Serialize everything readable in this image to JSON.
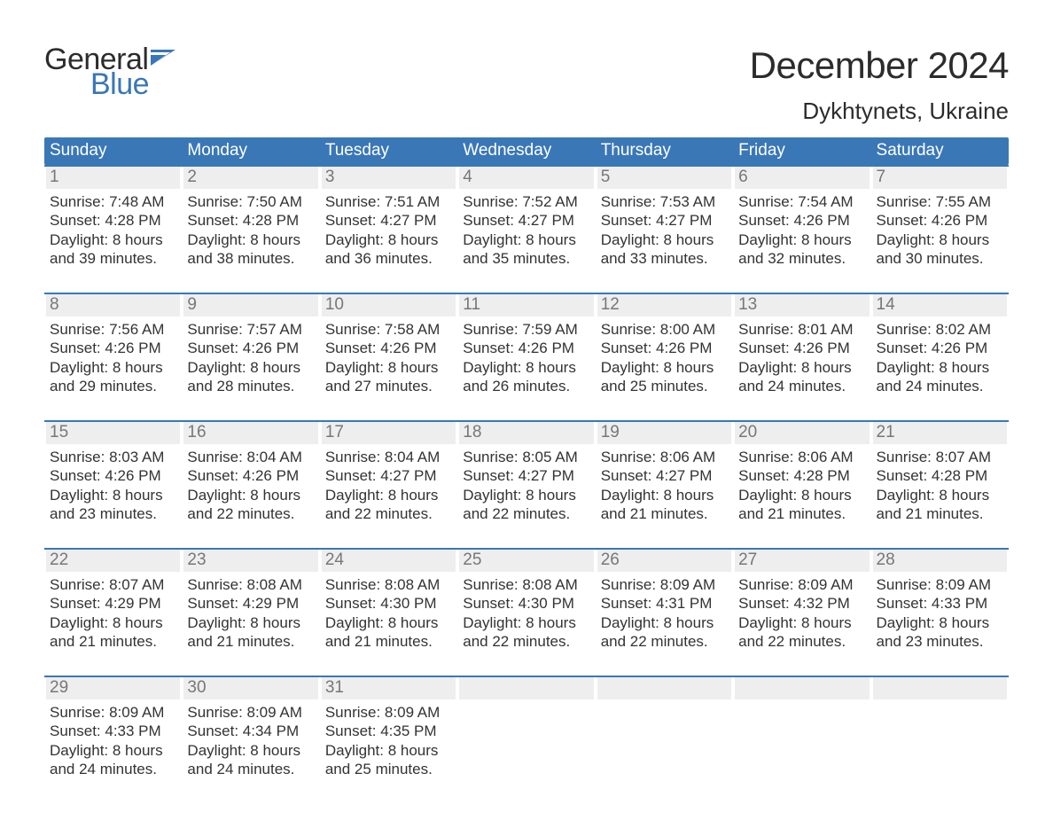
{
  "brand": {
    "word1": "General",
    "word2": "Blue",
    "flag_color": "#3a77b7"
  },
  "title": "December 2024",
  "location": "Dykhtynets, Ukraine",
  "colors": {
    "header_bg": "#3a77b7",
    "header_text": "#ffffff",
    "daynum_bg": "#eeeeee",
    "daynum_text": "#777777",
    "week_border": "#3a77b7",
    "body_text": "#333333",
    "page_bg": "#ffffff"
  },
  "weekdays": [
    "Sunday",
    "Monday",
    "Tuesday",
    "Wednesday",
    "Thursday",
    "Friday",
    "Saturday"
  ],
  "weeks": [
    [
      {
        "n": "1",
        "sunrise": "7:48 AM",
        "sunset": "4:28 PM",
        "dl1": "8 hours",
        "dl2": "and 39 minutes."
      },
      {
        "n": "2",
        "sunrise": "7:50 AM",
        "sunset": "4:28 PM",
        "dl1": "8 hours",
        "dl2": "and 38 minutes."
      },
      {
        "n": "3",
        "sunrise": "7:51 AM",
        "sunset": "4:27 PM",
        "dl1": "8 hours",
        "dl2": "and 36 minutes."
      },
      {
        "n": "4",
        "sunrise": "7:52 AM",
        "sunset": "4:27 PM",
        "dl1": "8 hours",
        "dl2": "and 35 minutes."
      },
      {
        "n": "5",
        "sunrise": "7:53 AM",
        "sunset": "4:27 PM",
        "dl1": "8 hours",
        "dl2": "and 33 minutes."
      },
      {
        "n": "6",
        "sunrise": "7:54 AM",
        "sunset": "4:26 PM",
        "dl1": "8 hours",
        "dl2": "and 32 minutes."
      },
      {
        "n": "7",
        "sunrise": "7:55 AM",
        "sunset": "4:26 PM",
        "dl1": "8 hours",
        "dl2": "and 30 minutes."
      }
    ],
    [
      {
        "n": "8",
        "sunrise": "7:56 AM",
        "sunset": "4:26 PM",
        "dl1": "8 hours",
        "dl2": "and 29 minutes."
      },
      {
        "n": "9",
        "sunrise": "7:57 AM",
        "sunset": "4:26 PM",
        "dl1": "8 hours",
        "dl2": "and 28 minutes."
      },
      {
        "n": "10",
        "sunrise": "7:58 AM",
        "sunset": "4:26 PM",
        "dl1": "8 hours",
        "dl2": "and 27 minutes."
      },
      {
        "n": "11",
        "sunrise": "7:59 AM",
        "sunset": "4:26 PM",
        "dl1": "8 hours",
        "dl2": "and 26 minutes."
      },
      {
        "n": "12",
        "sunrise": "8:00 AM",
        "sunset": "4:26 PM",
        "dl1": "8 hours",
        "dl2": "and 25 minutes."
      },
      {
        "n": "13",
        "sunrise": "8:01 AM",
        "sunset": "4:26 PM",
        "dl1": "8 hours",
        "dl2": "and 24 minutes."
      },
      {
        "n": "14",
        "sunrise": "8:02 AM",
        "sunset": "4:26 PM",
        "dl1": "8 hours",
        "dl2": "and 24 minutes."
      }
    ],
    [
      {
        "n": "15",
        "sunrise": "8:03 AM",
        "sunset": "4:26 PM",
        "dl1": "8 hours",
        "dl2": "and 23 minutes."
      },
      {
        "n": "16",
        "sunrise": "8:04 AM",
        "sunset": "4:26 PM",
        "dl1": "8 hours",
        "dl2": "and 22 minutes."
      },
      {
        "n": "17",
        "sunrise": "8:04 AM",
        "sunset": "4:27 PM",
        "dl1": "8 hours",
        "dl2": "and 22 minutes."
      },
      {
        "n": "18",
        "sunrise": "8:05 AM",
        "sunset": "4:27 PM",
        "dl1": "8 hours",
        "dl2": "and 22 minutes."
      },
      {
        "n": "19",
        "sunrise": "8:06 AM",
        "sunset": "4:27 PM",
        "dl1": "8 hours",
        "dl2": "and 21 minutes."
      },
      {
        "n": "20",
        "sunrise": "8:06 AM",
        "sunset": "4:28 PM",
        "dl1": "8 hours",
        "dl2": "and 21 minutes."
      },
      {
        "n": "21",
        "sunrise": "8:07 AM",
        "sunset": "4:28 PM",
        "dl1": "8 hours",
        "dl2": "and 21 minutes."
      }
    ],
    [
      {
        "n": "22",
        "sunrise": "8:07 AM",
        "sunset": "4:29 PM",
        "dl1": "8 hours",
        "dl2": "and 21 minutes."
      },
      {
        "n": "23",
        "sunrise": "8:08 AM",
        "sunset": "4:29 PM",
        "dl1": "8 hours",
        "dl2": "and 21 minutes."
      },
      {
        "n": "24",
        "sunrise": "8:08 AM",
        "sunset": "4:30 PM",
        "dl1": "8 hours",
        "dl2": "and 21 minutes."
      },
      {
        "n": "25",
        "sunrise": "8:08 AM",
        "sunset": "4:30 PM",
        "dl1": "8 hours",
        "dl2": "and 22 minutes."
      },
      {
        "n": "26",
        "sunrise": "8:09 AM",
        "sunset": "4:31 PM",
        "dl1": "8 hours",
        "dl2": "and 22 minutes."
      },
      {
        "n": "27",
        "sunrise": "8:09 AM",
        "sunset": "4:32 PM",
        "dl1": "8 hours",
        "dl2": "and 22 minutes."
      },
      {
        "n": "28",
        "sunrise": "8:09 AM",
        "sunset": "4:33 PM",
        "dl1": "8 hours",
        "dl2": "and 23 minutes."
      }
    ],
    [
      {
        "n": "29",
        "sunrise": "8:09 AM",
        "sunset": "4:33 PM",
        "dl1": "8 hours",
        "dl2": "and 24 minutes."
      },
      {
        "n": "30",
        "sunrise": "8:09 AM",
        "sunset": "4:34 PM",
        "dl1": "8 hours",
        "dl2": "and 24 minutes."
      },
      {
        "n": "31",
        "sunrise": "8:09 AM",
        "sunset": "4:35 PM",
        "dl1": "8 hours",
        "dl2": "and 25 minutes."
      },
      {
        "empty": true
      },
      {
        "empty": true
      },
      {
        "empty": true
      },
      {
        "empty": true
      }
    ]
  ],
  "labels": {
    "sunrise_prefix": "Sunrise: ",
    "sunset_prefix": "Sunset: ",
    "daylight_prefix": "Daylight: "
  }
}
